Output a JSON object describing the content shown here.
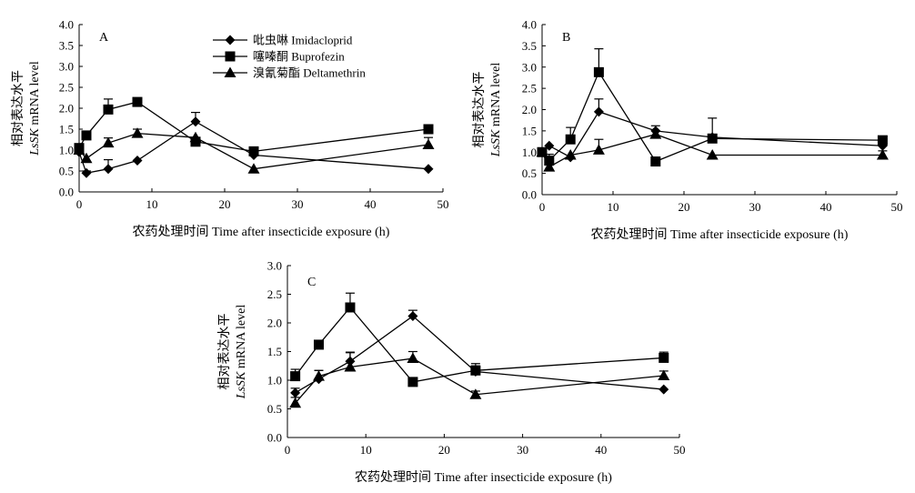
{
  "chart_data": [
    {
      "type": "line",
      "panel": "A",
      "xlabel": "农药处理时间 Time after insecticide exposure (h)",
      "ylabel_cn": "相对表达水平",
      "ylabel_gene": "LsSK",
      "ylabel_rest": " mRNA level",
      "xlim": [
        0,
        50
      ],
      "ylim": [
        0,
        4.0
      ],
      "xticks": [
        "0",
        "10",
        "20",
        "30",
        "40",
        "50"
      ],
      "yticks": [
        "0.0",
        "0.5",
        "1.0",
        "1.5",
        "2.0",
        "2.5",
        "3.0",
        "3.5",
        "4.0"
      ],
      "legend": [
        {
          "name": "吡虫啉 Imidacloprid",
          "marker": "diamond"
        },
        {
          "name": "噻嗪酮 Buprofezin",
          "marker": "square"
        },
        {
          "name": "溴氰菊酯 Deltamethrin",
          "marker": "triangle"
        }
      ],
      "x": [
        0,
        1,
        4,
        8,
        16,
        24,
        48
      ],
      "series": [
        {
          "marker": "diamond",
          "values": [
            0.95,
            0.45,
            0.55,
            0.75,
            1.68,
            0.88,
            0.55
          ],
          "err": [
            0,
            0.05,
            0.22,
            0,
            0.22,
            0,
            0
          ]
        },
        {
          "marker": "square",
          "values": [
            1.05,
            1.35,
            1.97,
            2.15,
            1.2,
            0.97,
            1.5
          ],
          "err": [
            0,
            0,
            0.25,
            0,
            0,
            0,
            0.1
          ]
        },
        {
          "marker": "triangle",
          "values": [
            1.0,
            0.8,
            1.17,
            1.4,
            1.3,
            0.55,
            1.13
          ],
          "err": [
            0,
            0,
            0.12,
            0.1,
            0,
            0,
            0.17
          ]
        }
      ]
    },
    {
      "type": "line",
      "panel": "B",
      "xlabel": "农药处理时间 Time after insecticide exposure (h)",
      "ylabel_cn": "相对表达水平",
      "ylabel_gene": "LsSK",
      "ylabel_rest": " mRNA level",
      "xlim": [
        0,
        50
      ],
      "ylim": [
        0,
        4.0
      ],
      "xticks": [
        "0",
        "10",
        "20",
        "30",
        "40",
        "50"
      ],
      "yticks": [
        "0.0",
        "0.5",
        "1.0",
        "1.5",
        "2.0",
        "2.5",
        "3.0",
        "3.5",
        "4.0"
      ],
      "x": [
        0,
        1,
        4,
        8,
        16,
        24,
        48
      ],
      "series": [
        {
          "marker": "diamond",
          "values": [
            1.0,
            1.15,
            0.88,
            1.95,
            1.5,
            1.35,
            1.15
          ],
          "err": [
            0,
            0,
            0,
            0.3,
            0,
            0,
            0
          ]
        },
        {
          "marker": "square",
          "values": [
            1.0,
            0.8,
            1.3,
            2.88,
            0.78,
            1.32,
            1.28
          ],
          "err": [
            0,
            0,
            0.28,
            0.55,
            0,
            0.48,
            0.05
          ]
        },
        {
          "marker": "triangle",
          "values": [
            1.0,
            0.65,
            0.93,
            1.05,
            1.42,
            0.93,
            0.93
          ],
          "err": [
            0,
            0.3,
            0,
            0.25,
            0.2,
            0,
            0.1
          ]
        }
      ]
    },
    {
      "type": "line",
      "panel": "C",
      "xlabel": "农药处理时间 Time after insecticide exposure (h)",
      "ylabel_cn": "相对表达水平",
      "ylabel_gene": "LsSK",
      "ylabel_rest": " mRNA level",
      "xlim": [
        0,
        50
      ],
      "ylim": [
        0,
        3.0
      ],
      "xticks": [
        "0",
        "10",
        "20",
        "30",
        "40",
        "50"
      ],
      "yticks": [
        "0.0",
        "0.5",
        "1.0",
        "1.5",
        "2.0",
        "2.5",
        "3.0"
      ],
      "x": [
        1,
        4,
        8,
        16,
        24,
        48
      ],
      "series": [
        {
          "marker": "diamond",
          "values": [
            0.78,
            1.02,
            1.33,
            2.12,
            1.15,
            0.84
          ],
          "err": [
            0.08,
            0.15,
            0.16,
            0.1,
            0.1,
            0
          ]
        },
        {
          "marker": "square",
          "values": [
            1.07,
            1.62,
            2.27,
            0.97,
            1.17,
            1.39
          ],
          "err": [
            0.12,
            0,
            0.25,
            0,
            0.12,
            0.1
          ]
        },
        {
          "marker": "triangle",
          "values": [
            0.6,
            1.07,
            1.23,
            1.38,
            0.75,
            1.08
          ],
          "err": [
            0.1,
            0.1,
            0.25,
            0.12,
            0.06,
            0.08
          ]
        }
      ]
    }
  ]
}
